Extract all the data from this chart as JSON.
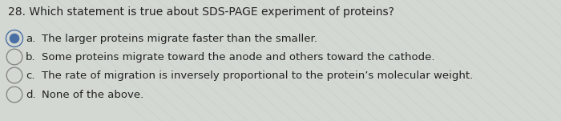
{
  "question": "28. Which statement is true about SDS-PAGE experiment of proteins?",
  "options": [
    {
      "label": "a.",
      "text": "The larger proteins migrate faster than the smaller.",
      "selected": true
    },
    {
      "label": "b.",
      "text": "Some proteins migrate toward the anode and others toward the cathode.",
      "selected": false
    },
    {
      "label": "c.",
      "text": "The rate of migration is inversely proportional to the protein’s molecular weight.",
      "selected": false
    },
    {
      "label": "d.",
      "text": "None of the above.",
      "selected": false
    }
  ],
  "bg_color": "#d4d8d2",
  "question_fontsize": 10.0,
  "option_fontsize": 9.5,
  "text_color": "#222222",
  "selected_dot_color": "#4a6fa5",
  "unselected_ring_color": "#888888",
  "figsize": [
    7.0,
    1.51
  ],
  "dpi": 100
}
